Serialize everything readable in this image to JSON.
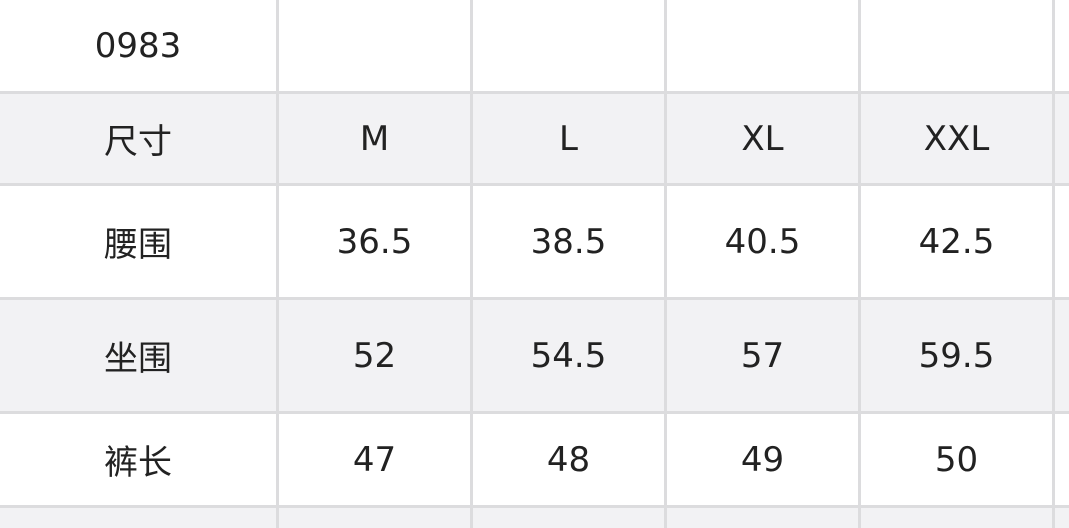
{
  "table": {
    "title_row": [
      "0983",
      "",
      "",
      "",
      ""
    ],
    "rows": [
      {
        "label": "尺寸",
        "values": [
          "M",
          "L",
          "XL",
          "XXL"
        ],
        "shaded": true
      },
      {
        "label": "腰围",
        "values": [
          "36.5",
          "38.5",
          "40.5",
          "42.5"
        ],
        "shaded": false
      },
      {
        "label": "坐围",
        "values": [
          "52",
          "54.5",
          "57",
          "59.5"
        ],
        "shaded": true
      },
      {
        "label": "裤长",
        "values": [
          "47",
          "48",
          "49",
          "50"
        ],
        "shaded": false
      }
    ]
  }
}
